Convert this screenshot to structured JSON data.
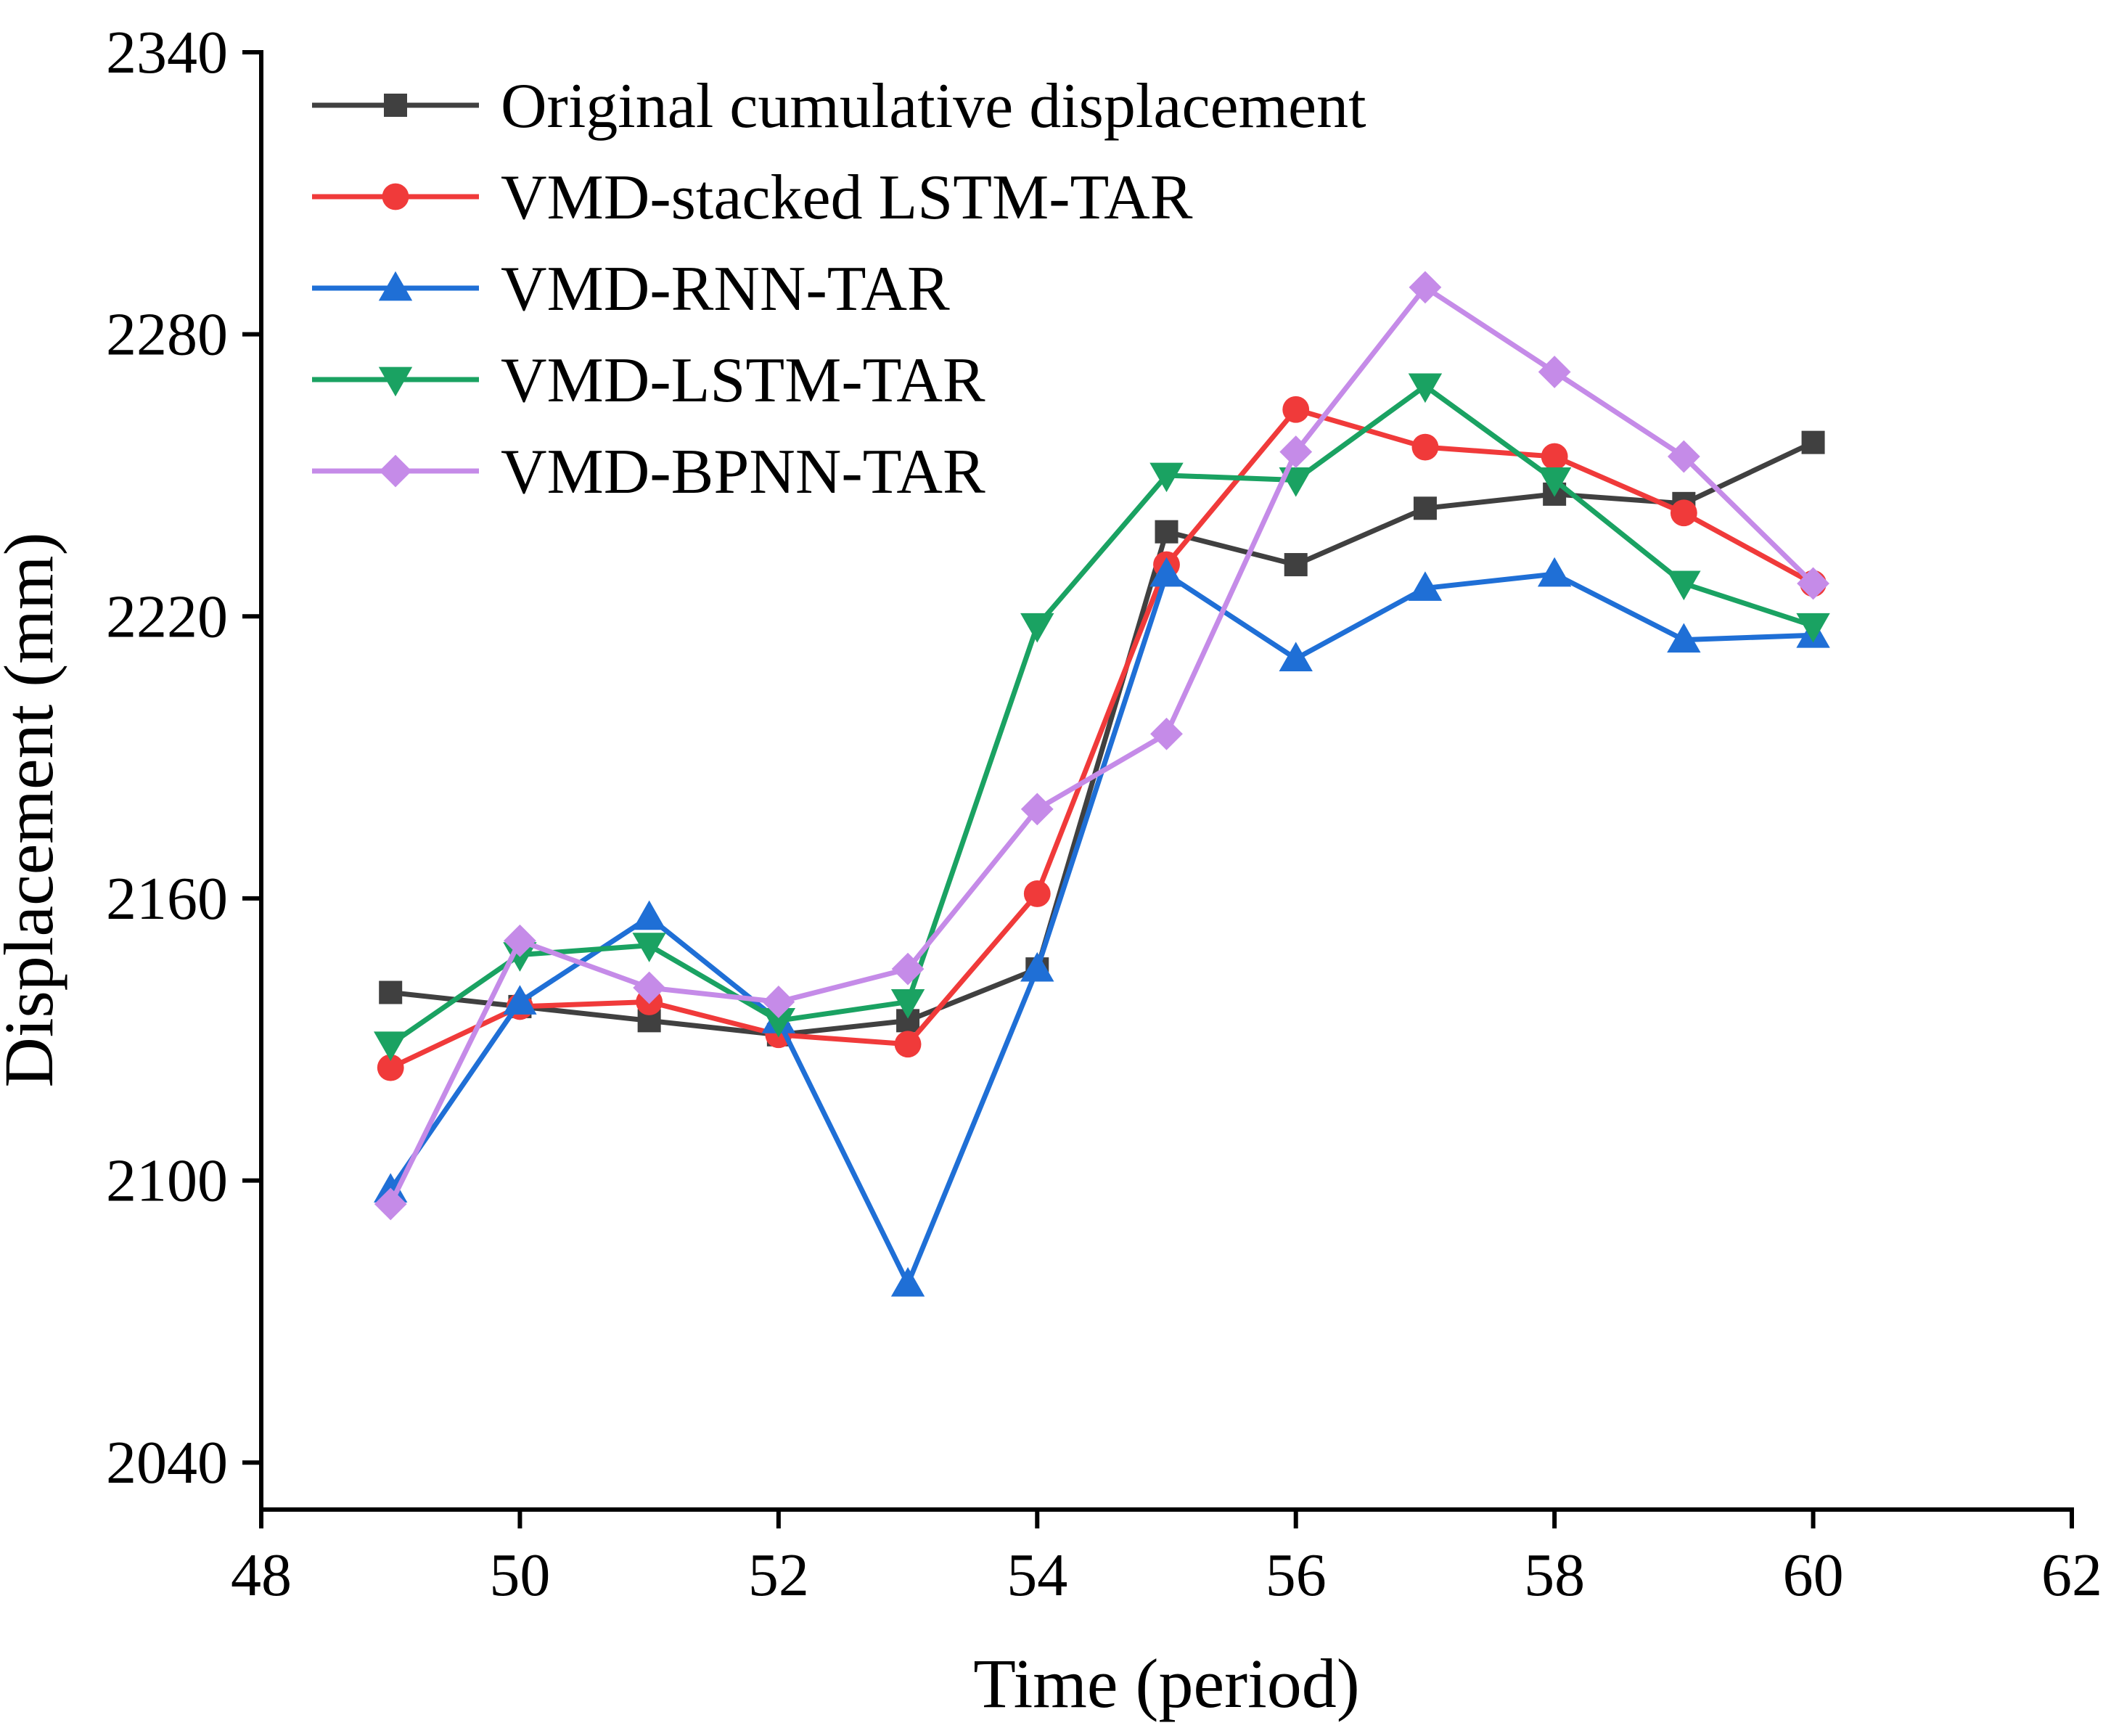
{
  "chart_data": {
    "type": "line",
    "title": "",
    "xlabel": "Time (period)",
    "ylabel": "Displacement (mm)",
    "xlim": [
      48,
      62
    ],
    "ylim": [
      2030,
      2340
    ],
    "xticks": [
      "48",
      "50",
      "52",
      "54",
      "56",
      "58",
      "60",
      "62"
    ],
    "yticks": [
      "2040",
      "2100",
      "2160",
      "2220",
      "2280",
      "2340"
    ],
    "legend_position": "top-left",
    "x": [
      49,
      50,
      51,
      52,
      53,
      54,
      55,
      56,
      57,
      58,
      59,
      60
    ],
    "series": [
      {
        "name": "Original cumulative displacement",
        "color": "#404040",
        "marker": "square",
        "values": [
          2140,
          2137,
          2134,
          2131,
          2134,
          2145,
          2238,
          2231,
          2243,
          2246,
          2244,
          2257
        ]
      },
      {
        "name": "VMD-stacked LSTM-TAR",
        "color": "#f03a3a",
        "marker": "circle",
        "values": [
          2124,
          2137,
          2138,
          2131,
          2129,
          2161,
          2231,
          2264,
          2256,
          2254,
          2242,
          2227
        ]
      },
      {
        "name": "VMD-RNN-TAR",
        "color": "#1f6fd6",
        "marker": "triangle-up",
        "values": [
          2098,
          2138,
          2156,
          2134,
          2078,
          2145,
          2229,
          2211,
          2226,
          2229,
          2215,
          2216
        ]
      },
      {
        "name": "VMD-LSTM-TAR",
        "color": "#1aa262",
        "marker": "triangle-down",
        "values": [
          2129,
          2148,
          2150,
          2134,
          2138,
          2218,
          2250,
          2249,
          2269,
          2249,
          2227,
          2218
        ]
      },
      {
        "name": "VMD-BPNN-TAR",
        "color": "#c58be8",
        "marker": "diamond",
        "values": [
          2095,
          2151,
          2141,
          2138,
          2145,
          2179,
          2195,
          2255,
          2290,
          2272,
          2254,
          2227
        ]
      }
    ]
  }
}
